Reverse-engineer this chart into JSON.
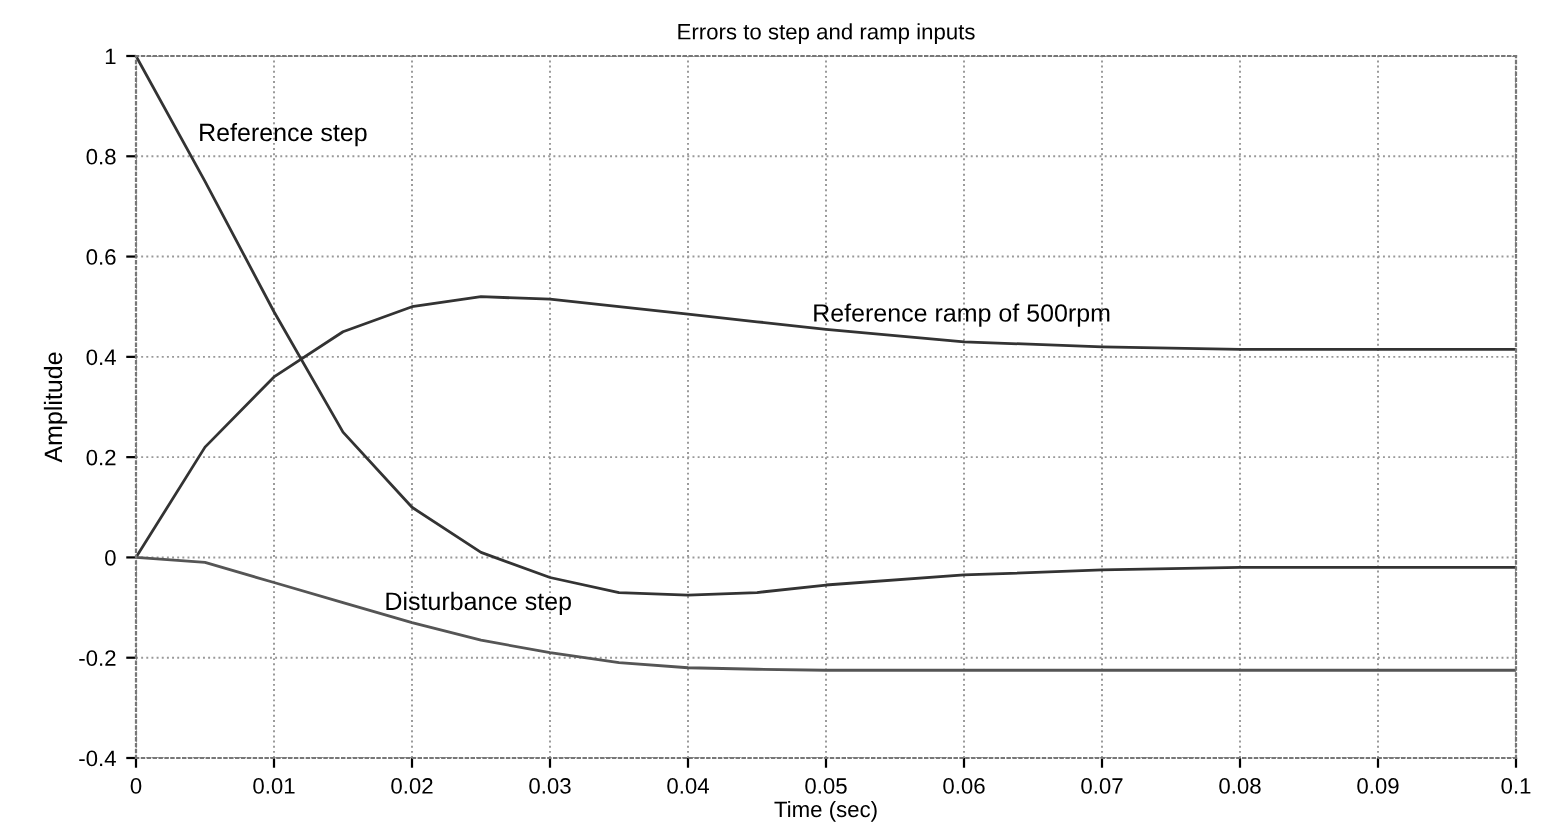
{
  "chart_data": {
    "type": "line",
    "title": "Errors to step and ramp inputs",
    "xlabel": "Time (sec)",
    "ylabel": "Amplitude",
    "x": [
      0,
      0.005,
      0.01,
      0.015,
      0.02,
      0.025,
      0.03,
      0.035,
      0.04,
      0.045,
      0.05,
      0.06,
      0.07,
      0.08,
      0.09,
      0.1
    ],
    "series": [
      {
        "color": "#333333",
        "values": [
          1,
          0.75,
          0.49,
          0.25,
          0.1,
          0.01,
          -0.04,
          -0.07,
          -0.075,
          -0.07,
          -0.055,
          -0.035,
          -0.025,
          -0.02,
          -0.02,
          -0.02
        ]
      },
      {
        "color": "#333333",
        "values": [
          0,
          0.22,
          0.36,
          0.45,
          0.5,
          0.52,
          0.515,
          0.5,
          0.485,
          0.47,
          0.455,
          0.43,
          0.42,
          0.415,
          0.415,
          0.415
        ]
      },
      {
        "color": "#555555",
        "values": [
          0,
          -0.01,
          -0.05,
          -0.09,
          -0.13,
          -0.165,
          -0.19,
          -0.21,
          -0.22,
          -0.223,
          -0.225,
          -0.225,
          -0.225,
          -0.225,
          -0.225,
          -0.225
        ]
      }
    ],
    "annotations": [
      {
        "text": "Reference step",
        "x": 0.0045,
        "y": 0.82
      },
      {
        "text": "Reference ramp of 500rpm",
        "x": 0.049,
        "y": 0.46
      },
      {
        "text": "Disturbance step",
        "x": 0.018,
        "y": -0.115
      }
    ],
    "xlim": [
      0,
      0.1
    ],
    "xticks": [
      0,
      0.01,
      0.02,
      0.03,
      0.04,
      0.05,
      0.06,
      0.07,
      0.08,
      0.09,
      0.1
    ],
    "ylim": [
      -0.4,
      1
    ],
    "yticks": [
      -0.4,
      -0.2,
      0,
      0.2,
      0.4,
      0.6,
      0.8,
      1
    ],
    "grid": true,
    "line_style": "solid",
    "marker": "none"
  }
}
